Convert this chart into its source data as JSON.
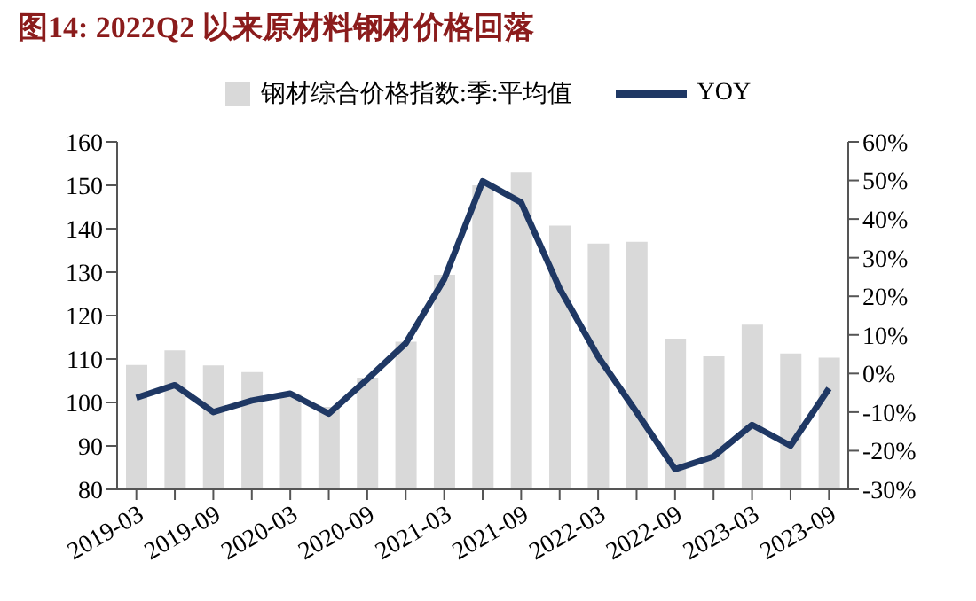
{
  "chart_data": {
    "type": "bar",
    "title": "图14:  2022Q2 以来原材料钢材价格回落",
    "categories": [
      "2019-03",
      null,
      "2019-09",
      null,
      "2020-03",
      null,
      "2020-09",
      null,
      "2021-03",
      null,
      "2021-09",
      null,
      "2022-03",
      null,
      "2022-09",
      null,
      "2023-03",
      null,
      "2023-09"
    ],
    "series": [
      {
        "name": "钢材综合价格指数:季:平均值",
        "color": "#d9d9d9",
        "values": [
          108.6,
          112,
          108.5,
          107,
          102,
          99,
          105.7,
          114,
          129.4,
          150,
          153,
          140.7,
          136.6,
          137,
          114.7,
          110.6,
          117.9,
          111.3,
          110.3
        ]
      },
      {
        "name": "YOY",
        "type": "line",
        "axis": "y2",
        "color": "#1f3864",
        "values": [
          -6.3,
          -3,
          -10,
          -7,
          -5.2,
          -10.4,
          -1.5,
          7.8,
          24.4,
          49.8,
          44.3,
          22,
          4.4,
          -10,
          -24.8,
          -21.5,
          -13.3,
          -18.7,
          -3.9
        ]
      }
    ],
    "ylim": [
      80,
      160
    ],
    "yticks": [
      80,
      90,
      100,
      110,
      120,
      130,
      140,
      150,
      160
    ],
    "y2lim": [
      -30,
      60
    ],
    "y2ticks": [
      {
        "value": -30,
        "label": "-30%"
      },
      {
        "value": -20,
        "label": "-20%"
      },
      {
        "value": -10,
        "label": "-10%"
      },
      {
        "value": 0,
        "label": "0%"
      },
      {
        "value": 10,
        "label": "10%"
      },
      {
        "value": 20,
        "label": "20%"
      },
      {
        "value": 30,
        "label": "30%"
      },
      {
        "value": 40,
        "label": "40%"
      },
      {
        "value": 50,
        "label": "50%"
      },
      {
        "value": 60,
        "label": "60%"
      }
    ],
    "legend": "top",
    "grid": false
  }
}
